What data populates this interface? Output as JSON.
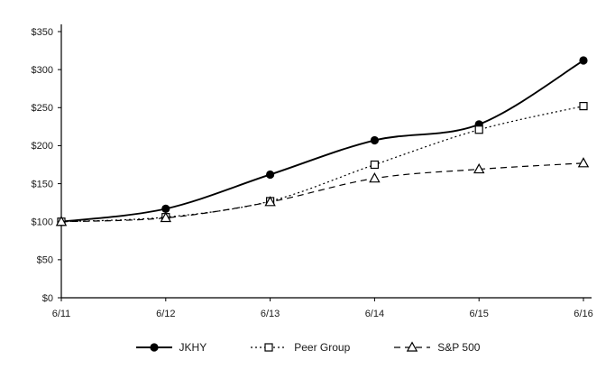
{
  "chart_data": {
    "type": "line",
    "x": [
      "6/11",
      "6/12",
      "6/13",
      "6/14",
      "6/15",
      "6/16"
    ],
    "series": [
      {
        "name": "JKHY",
        "values": [
          100,
          117,
          162,
          207,
          228,
          312
        ],
        "marker": "circle-filled",
        "line": "solid"
      },
      {
        "name": "Peer Group",
        "values": [
          100,
          106,
          127,
          175,
          221,
          252
        ],
        "marker": "square-open",
        "line": "dotted"
      },
      {
        "name": "S&P 500",
        "values": [
          100,
          105,
          126,
          157,
          169,
          177
        ],
        "marker": "triangle-open",
        "line": "dashed"
      }
    ],
    "ylim": [
      0,
      350
    ],
    "y_tick_values": [
      0,
      50,
      100,
      150,
      200,
      250,
      300,
      350
    ],
    "y_ticks": [
      "$0",
      "$50",
      "$100",
      "$150",
      "$200",
      "$250",
      "$300",
      "$350"
    ],
    "xlabel": "",
    "ylabel": "",
    "title": "",
    "grid": false,
    "legend_position": "bottom",
    "line_color": "#000000",
    "text_color": "#1a1a1a"
  }
}
